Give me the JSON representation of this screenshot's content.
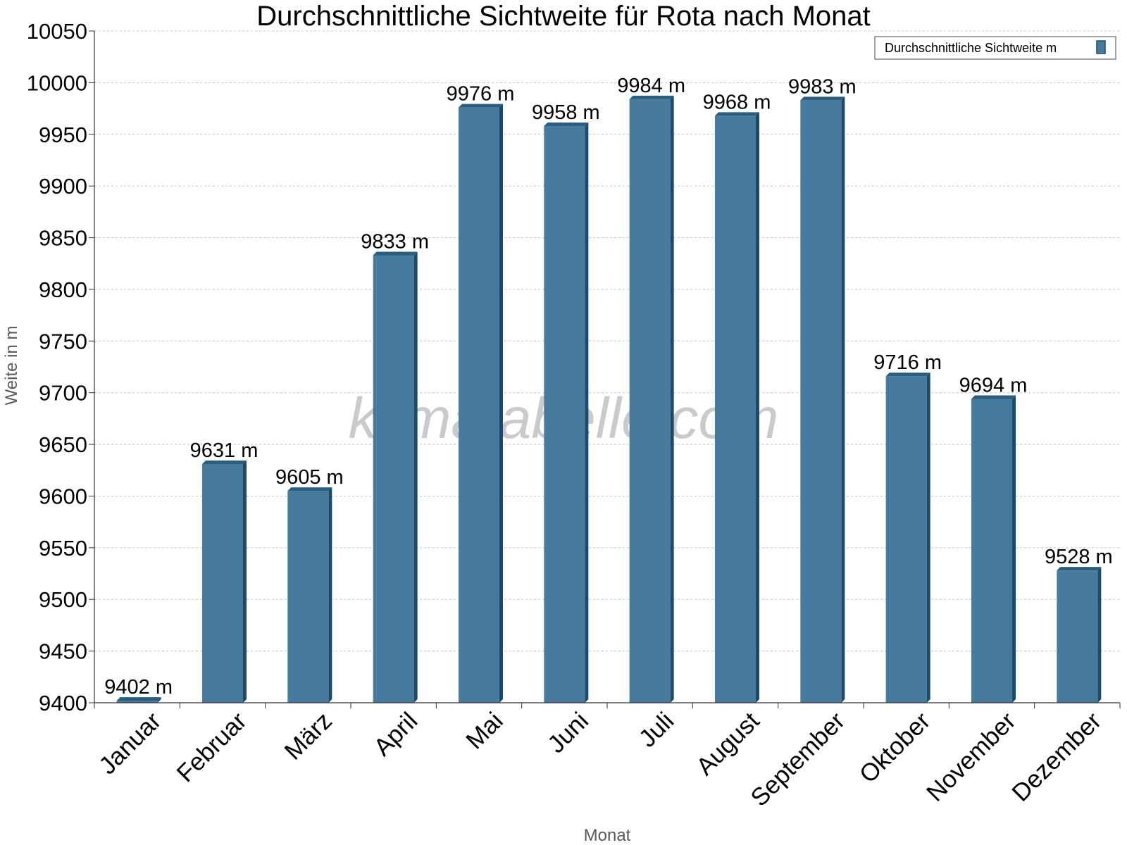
{
  "chart_data": {
    "type": "bar",
    "title": "Durchschnittliche Sichtweite für Rota nach Monat",
    "xlabel": "Monat",
    "ylabel": "Weite in m",
    "categories": [
      "Januar",
      "Februar",
      "März",
      "April",
      "Mai",
      "Juni",
      "Juli",
      "August",
      "September",
      "Oktober",
      "November",
      "Dezember"
    ],
    "series": [
      {
        "name": "Durchschnittliche Sichtweite m",
        "values": [
          9402,
          9631,
          9605,
          9833,
          9976,
          9958,
          9984,
          9968,
          9983,
          9716,
          9694,
          9528
        ],
        "data_labels": [
          "9402 m",
          "9631 m",
          "9605 m",
          "9833 m",
          "9976 m",
          "9958 m",
          "9984 m",
          "9968 m",
          "9983 m",
          "9716 m",
          "9694 m",
          "9528 m"
        ]
      }
    ],
    "ylim": [
      9400,
      10050
    ],
    "yticks": [
      9400,
      9450,
      9500,
      9550,
      9600,
      9650,
      9700,
      9750,
      9800,
      9850,
      9900,
      9950,
      10000,
      10050
    ],
    "grid": true,
    "legend_position": "top-right",
    "colors": {
      "bar": "#467b9e",
      "bar_side": "#1c4a6b",
      "bar_top": "#2a5d80"
    }
  },
  "watermark": "klimatabelle.com"
}
